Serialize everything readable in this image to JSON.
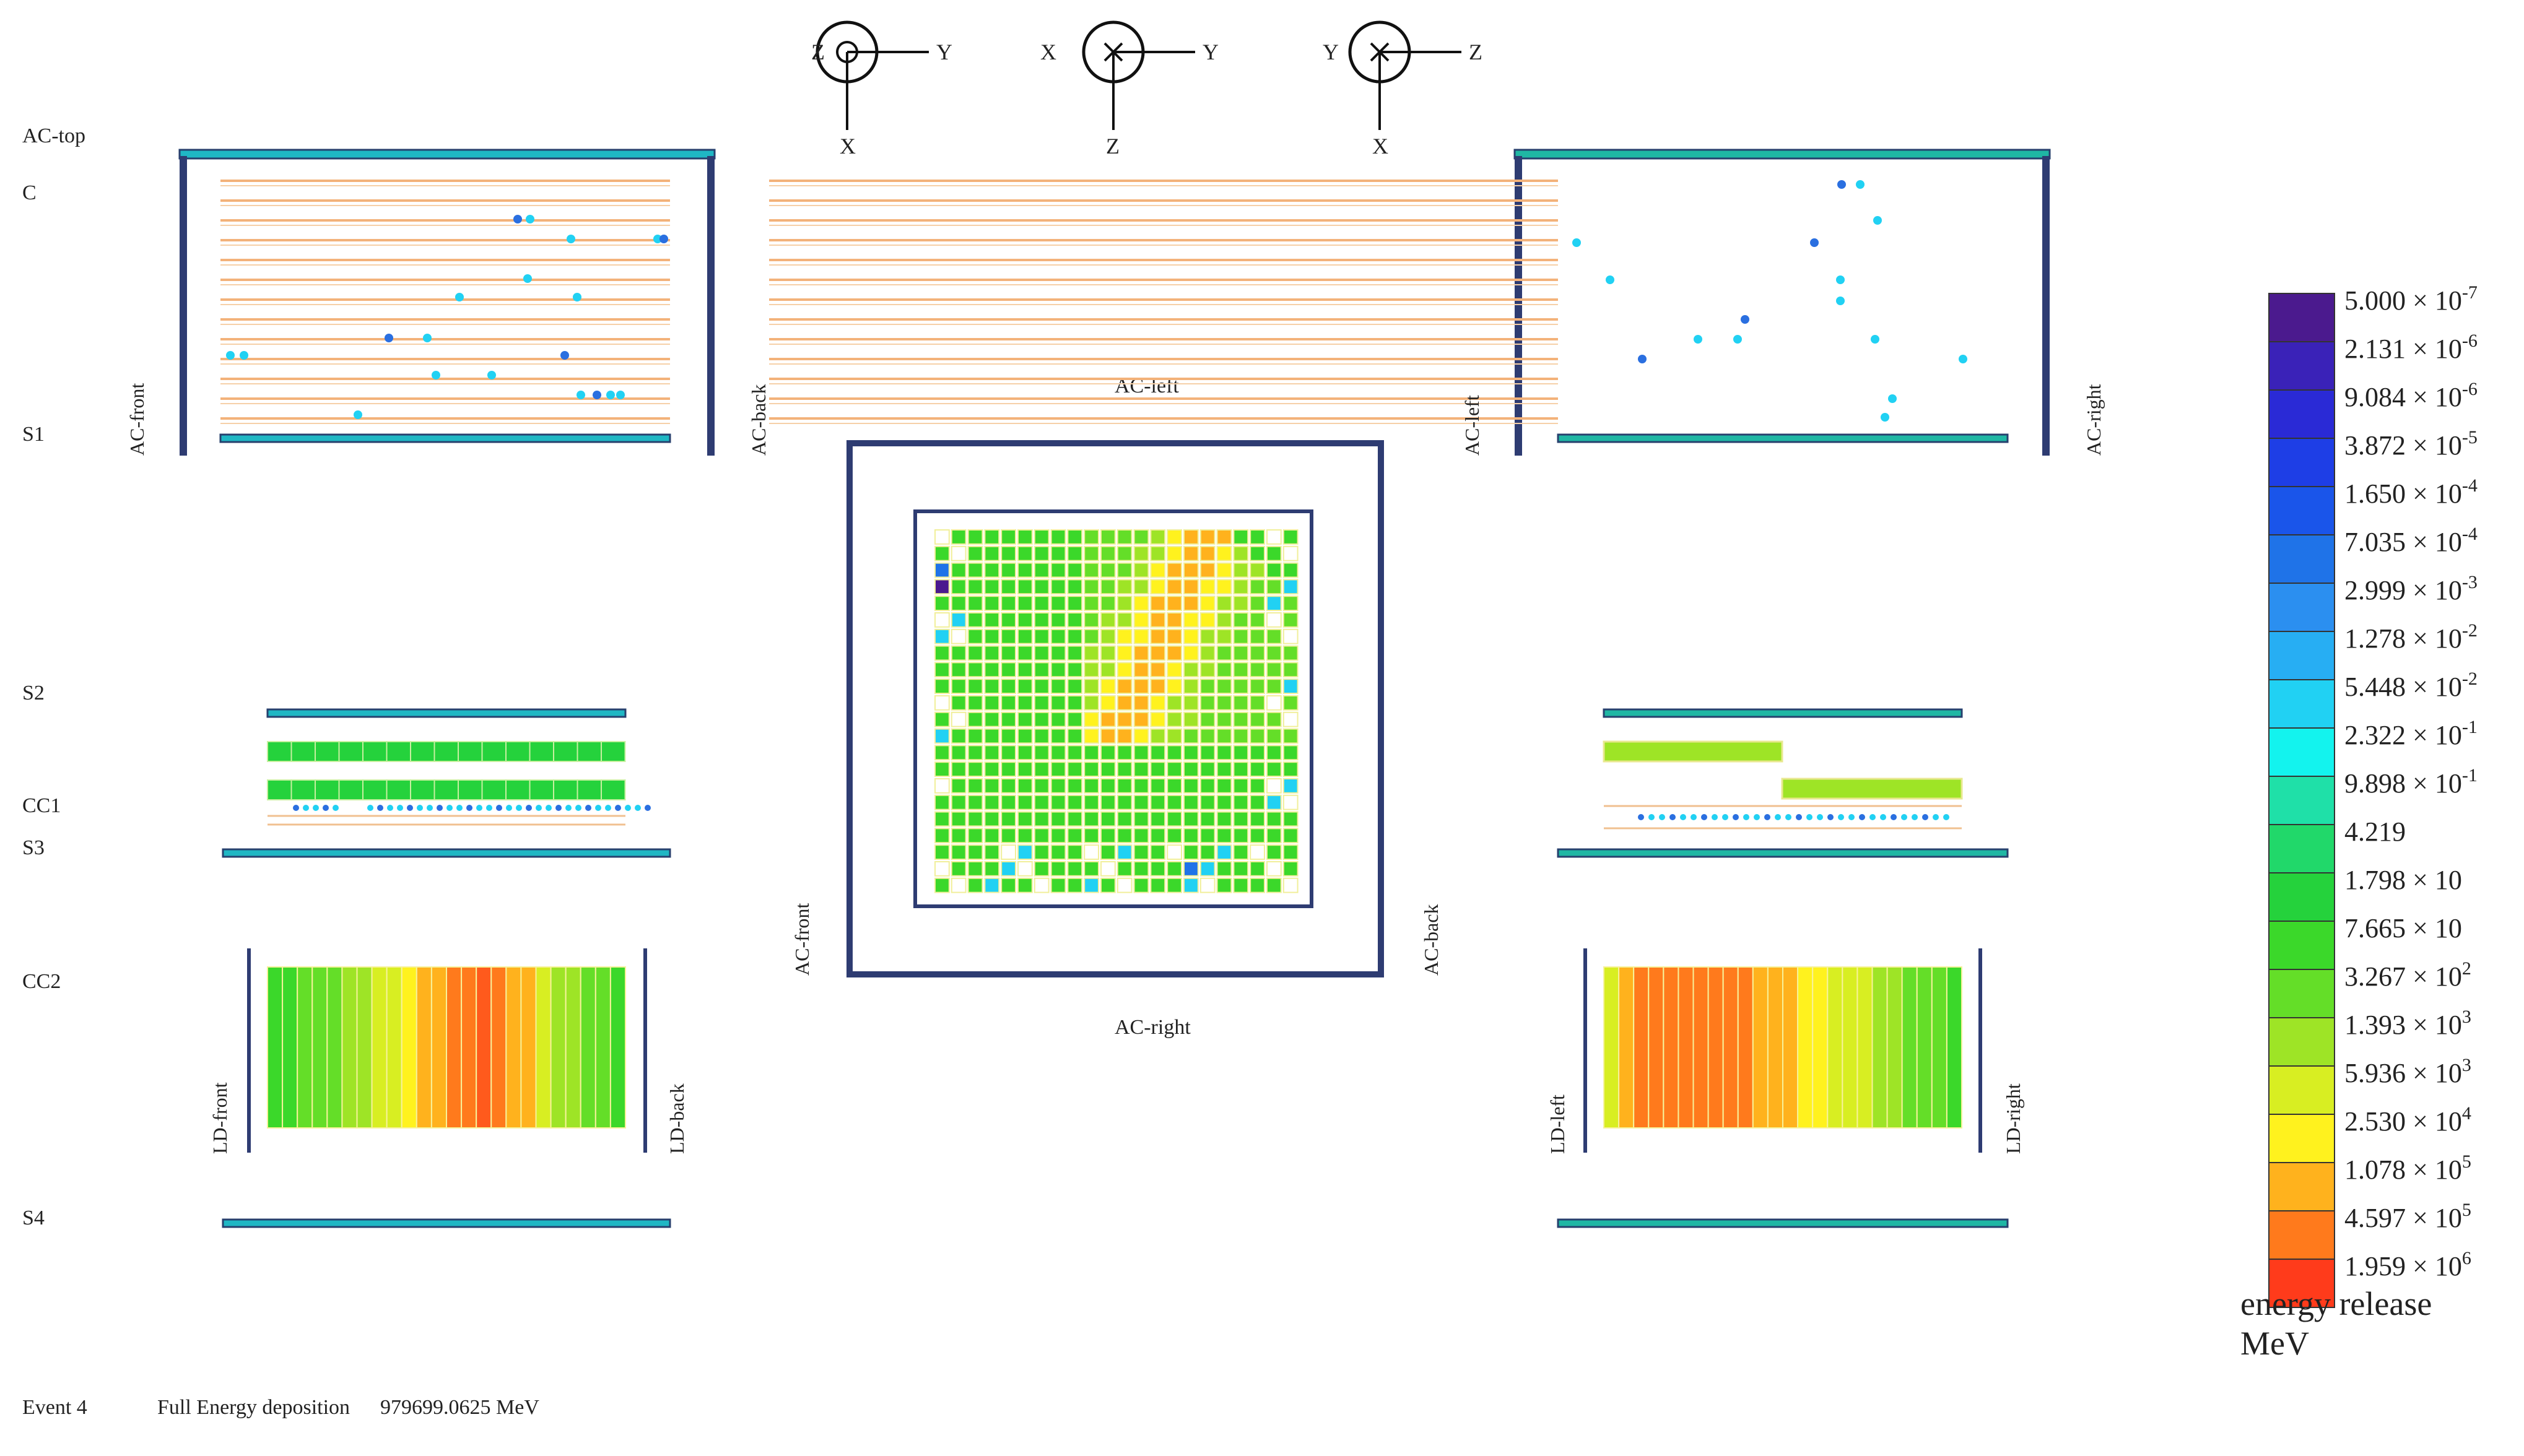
{
  "layer_labels": {
    "ac_top": "AC-top",
    "c": "C",
    "s1": "S1",
    "s2": "S2",
    "cc1": "CC1",
    "s3": "S3",
    "cc2": "CC2",
    "s4": "S4"
  },
  "views": {
    "zx": {
      "axes": {
        "h_left": "Z",
        "h_right": "Y",
        "v_bottom": "X",
        "center": "dot"
      },
      "side_left": "AC-front",
      "side_right": "AC-back",
      "ld_left": "LD-front",
      "ld_right": "LD-back"
    },
    "xy": {
      "axes": {
        "h_left": "X",
        "h_right": "Y",
        "v_bottom": "Z",
        "center": "cross"
      },
      "top": "AC-left",
      "bottom": "AC-right",
      "left": "AC-front",
      "right": "AC-back"
    },
    "yz": {
      "axes": {
        "h_left": "Y",
        "h_right": "Z",
        "v_bottom": "X",
        "center": "cross"
      },
      "side_left": "AC-left",
      "side_right": "AC-right",
      "ld_left": "LD-left",
      "ld_right": "LD-right"
    }
  },
  "colorbar": {
    "title_line1": "energy release",
    "title_line2": "MeV",
    "colors": [
      "#4b1a8e",
      "#3a22b8",
      "#2a2ad6",
      "#1e3ee6",
      "#1a55ea",
      "#1f73e8",
      "#2b8ff0",
      "#27aef3",
      "#21d1f3",
      "#13f3ee",
      "#1fe0a8",
      "#21d86a",
      "#25d23c",
      "#3bd82a",
      "#64de28",
      "#9ee426",
      "#d8ee22",
      "#fff21e",
      "#ffb21d",
      "#ff7a1c",
      "#ff3b1b"
    ],
    "labels": [
      {
        "m": "5.000",
        "e": "-7"
      },
      {
        "m": "2.131",
        "e": "-6"
      },
      {
        "m": "9.084",
        "e": "-6"
      },
      {
        "m": "3.872",
        "e": "-5"
      },
      {
        "m": "1.650",
        "e": "-4"
      },
      {
        "m": "7.035",
        "e": "-4"
      },
      {
        "m": "2.999",
        "e": "-3"
      },
      {
        "m": "1.278",
        "e": "-2"
      },
      {
        "m": "5.448",
        "e": "-2"
      },
      {
        "m": "2.322",
        "e": "-1"
      },
      {
        "m": "9.898",
        "e": "-1"
      },
      {
        "m": "4.219",
        "e": ""
      },
      {
        "m": "1.798",
        "e": "",
        "times10": true
      },
      {
        "m": "7.665",
        "e": "",
        "times10": true
      },
      {
        "m": "3.267",
        "e": "2"
      },
      {
        "m": "1.393",
        "e": "3"
      },
      {
        "m": "5.936",
        "e": "3"
      },
      {
        "m": "2.530",
        "e": "4"
      },
      {
        "m": "1.078",
        "e": "5"
      },
      {
        "m": "4.597",
        "e": "5"
      },
      {
        "m": "1.959",
        "e": "6"
      }
    ]
  },
  "footer": {
    "event": "Event 4",
    "label": "Full Energy deposition",
    "value": "979699.0625 MeV"
  },
  "cc2_left_colors": [
    "#3bd82a",
    "#3bd82a",
    "#64de28",
    "#64de28",
    "#64de28",
    "#9ee426",
    "#9ee426",
    "#d8ee22",
    "#d8ee22",
    "#fff21e",
    "#ffb21d",
    "#ffb21d",
    "#ff7a1c",
    "#ff7a1c",
    "#ff5a1c",
    "#ff7a1c",
    "#ffb21d",
    "#ffb21d",
    "#d8ee22",
    "#9ee426",
    "#9ee426",
    "#64de28",
    "#64de28",
    "#3bd82a"
  ],
  "cc2_right_colors": [
    "#d8ee22",
    "#ffb21d",
    "#ff7a1c",
    "#ff7a1c",
    "#ff7a1c",
    "#ff7a1c",
    "#ff7a1c",
    "#ff7a1c",
    "#ff7a1c",
    "#ff7a1c",
    "#ffb21d",
    "#ffb21d",
    "#ffb21d",
    "#fff21e",
    "#fff21e",
    "#d8ee22",
    "#d8ee22",
    "#d8ee22",
    "#9ee426",
    "#9ee426",
    "#64de28",
    "#64de28",
    "#64de28",
    "#3bd82a"
  ]
}
